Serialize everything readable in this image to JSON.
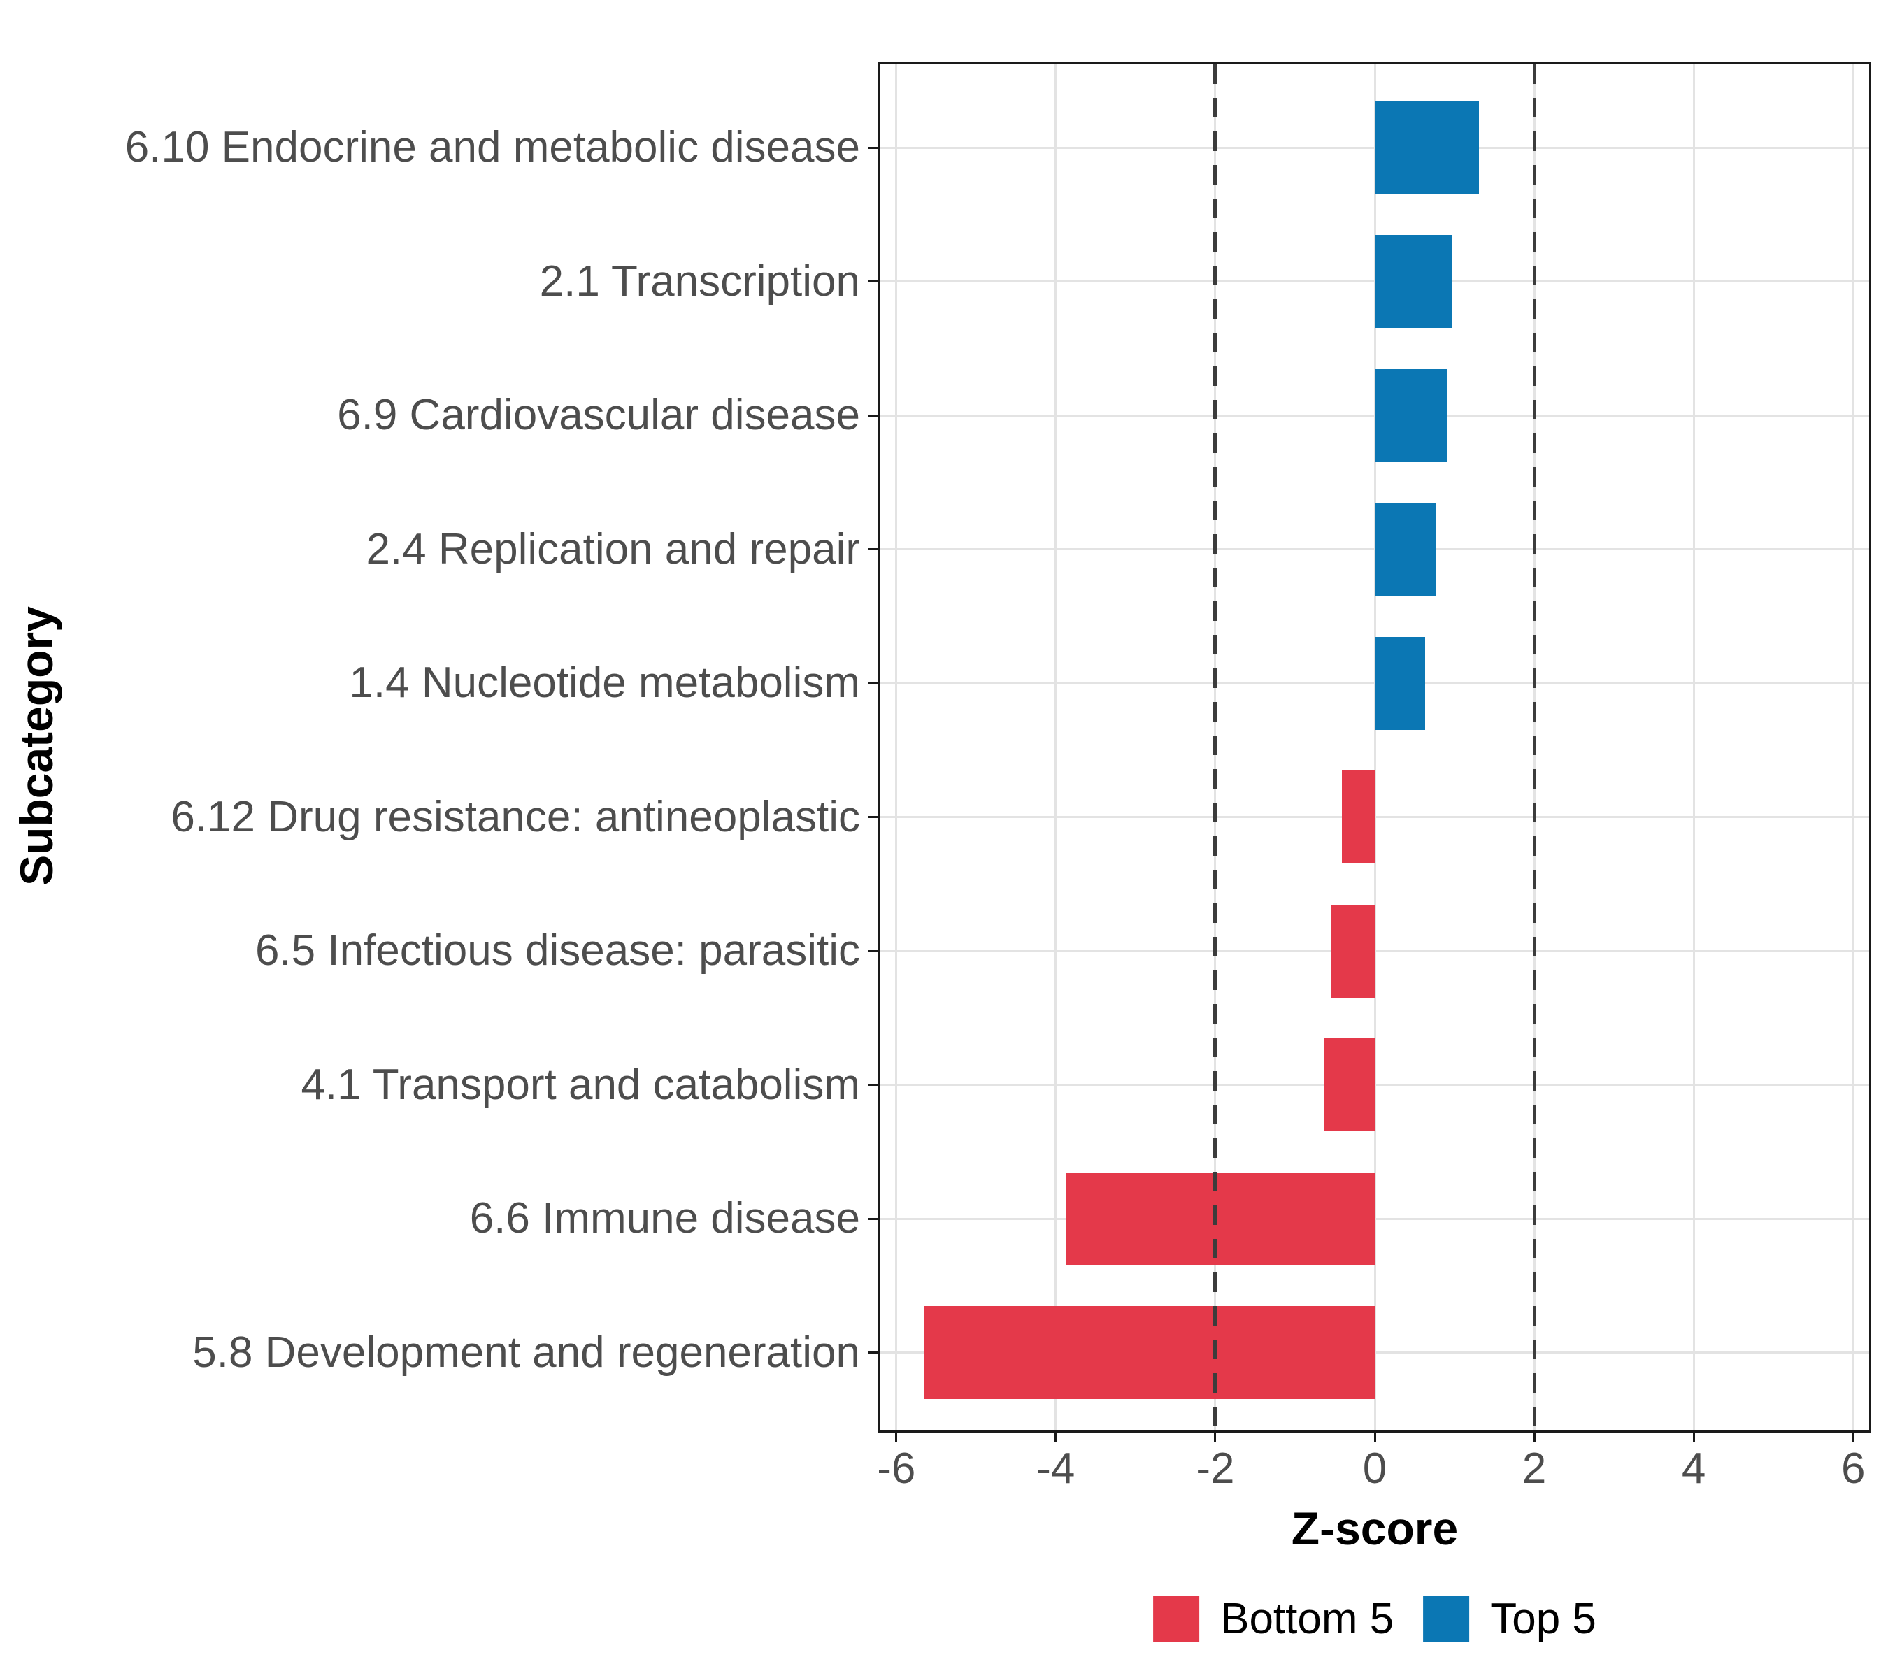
{
  "figure": {
    "x_axis_title": "Z-score",
    "y_axis_title": "Subcategory"
  },
  "legend": {
    "items": [
      {
        "label": "Bottom 5",
        "color": "#E4394A"
      },
      {
        "label": "Top 5",
        "color": "#0B77B4"
      }
    ]
  },
  "chart_data": {
    "type": "bar",
    "orientation": "horizontal",
    "title": "",
    "xlabel": "Z-score",
    "ylabel": "Subcategory",
    "xlim": [
      -6.2,
      6.2
    ],
    "x_ticks": [
      -6,
      -4,
      -2,
      0,
      2,
      4,
      6
    ],
    "grid": true,
    "legend_position": "bottom",
    "reference_lines": {
      "values": [
        -2,
        2
      ],
      "style": "dashed",
      "color": "#3C3C3C"
    },
    "series": [
      {
        "name": "Bottom 5",
        "color": "#E4394A"
      },
      {
        "name": "Top 5",
        "color": "#0B77B4"
      }
    ],
    "categories": [
      {
        "label": "6.10 Endocrine and metabolic disease",
        "value": 1.31,
        "group": "Top 5"
      },
      {
        "label": "2.1 Transcription",
        "value": 0.97,
        "group": "Top 5"
      },
      {
        "label": "6.9 Cardiovascular disease",
        "value": 0.9,
        "group": "Top 5"
      },
      {
        "label": "2.4 Replication and repair",
        "value": 0.76,
        "group": "Top 5"
      },
      {
        "label": "1.4 Nucleotide metabolism",
        "value": 0.63,
        "group": "Top 5"
      },
      {
        "label": "6.12 Drug resistance: antineoplastic",
        "value": -0.41,
        "group": "Bottom 5"
      },
      {
        "label": "6.5 Infectious disease: parasitic",
        "value": -0.54,
        "group": "Bottom 5"
      },
      {
        "label": "4.1 Transport and catabolism",
        "value": -0.64,
        "group": "Bottom 5"
      },
      {
        "label": "6.6 Immune disease",
        "value": -3.88,
        "group": "Bottom 5"
      },
      {
        "label": "5.8 Development and regeneration",
        "value": -5.65,
        "group": "Bottom 5"
      }
    ]
  }
}
